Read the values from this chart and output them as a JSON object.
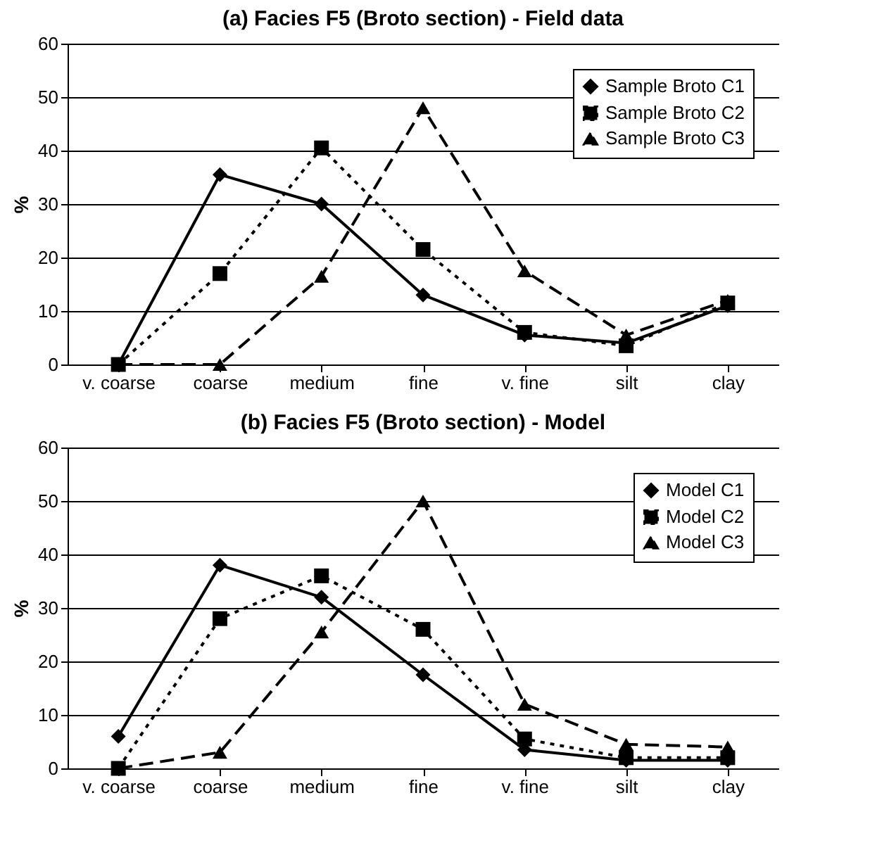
{
  "chart_data": [
    {
      "type": "line",
      "title": "(a) Facies F5 (Broto section) - Field data",
      "ylabel": "%",
      "categories": [
        "v. coarse",
        "coarse",
        "medium",
        "fine",
        "v. fine",
        "silt",
        "clay"
      ],
      "ylim": [
        0,
        60
      ],
      "yticks": [
        0,
        10,
        20,
        30,
        40,
        50,
        60
      ],
      "grid": "y",
      "legend": "top right",
      "series": [
        {
          "name": "Sample Broto C1",
          "color": "#000000",
          "marker": "diamond",
          "line_style": "solid",
          "values": [
            0,
            35.5,
            30,
            13,
            5.5,
            4,
            11
          ]
        },
        {
          "name": "Sample Broto C2",
          "color": "#000000",
          "marker": "square",
          "line_style": "dotted",
          "values": [
            0,
            17,
            40.5,
            21.5,
            6,
            3.5,
            11.5
          ]
        },
        {
          "name": "Sample Broto C3",
          "color": "#000000",
          "marker": "triangle",
          "line_style": "dashed",
          "values": [
            0,
            0,
            16.5,
            48,
            17.5,
            5.5,
            12
          ]
        }
      ]
    },
    {
      "type": "line",
      "title": "(b) Facies F5 (Broto section) - Model",
      "ylabel": "%",
      "categories": [
        "v. coarse",
        "coarse",
        "medium",
        "fine",
        "v. fine",
        "silt",
        "clay"
      ],
      "ylim": [
        0,
        60
      ],
      "yticks": [
        0,
        10,
        20,
        30,
        40,
        50,
        60
      ],
      "grid": "y",
      "legend": "top right",
      "series": [
        {
          "name": "Model C1",
          "color": "#000000",
          "marker": "diamond",
          "line_style": "solid",
          "values": [
            6,
            38,
            32,
            17.5,
            3.5,
            1.5,
            1.5
          ]
        },
        {
          "name": "Model C2",
          "color": "#000000",
          "marker": "square",
          "line_style": "dotted",
          "values": [
            0,
            28,
            36,
            26,
            5.5,
            2,
            2
          ]
        },
        {
          "name": "Model C3",
          "color": "#000000",
          "marker": "triangle",
          "line_style": "dashed",
          "values": [
            0,
            3,
            25.5,
            50,
            12,
            4.5,
            4
          ]
        }
      ]
    }
  ]
}
